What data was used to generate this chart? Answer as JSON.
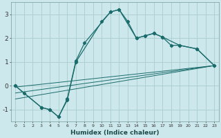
{
  "xlabel": "Humidex (Indice chaleur)",
  "xlim": [
    -0.5,
    23.5
  ],
  "ylim": [
    -1.5,
    3.5
  ],
  "xticks": [
    0,
    1,
    2,
    3,
    4,
    5,
    6,
    7,
    8,
    9,
    10,
    11,
    12,
    13,
    14,
    15,
    16,
    17,
    18,
    19,
    20,
    21,
    22,
    23
  ],
  "yticks": [
    -1,
    0,
    1,
    2,
    3
  ],
  "bg_color": "#cce8ec",
  "grid_color": "#aacccc",
  "line_color": "#1a6b6b",
  "curve1_x": [
    0,
    1,
    3,
    4,
    5,
    6,
    7,
    10,
    11,
    12,
    13,
    14,
    15,
    16,
    17,
    18,
    19,
    21,
    23
  ],
  "curve1_y": [
    0.0,
    -0.3,
    -0.9,
    -1.0,
    -1.3,
    -0.6,
    1.0,
    2.7,
    3.1,
    3.2,
    2.7,
    2.0,
    2.1,
    2.2,
    2.05,
    1.7,
    1.7,
    1.55,
    0.85
  ],
  "curve2_x": [
    0,
    3,
    4,
    5,
    6,
    7,
    8,
    11,
    12,
    14,
    15,
    16,
    17,
    19,
    21,
    23
  ],
  "curve2_y": [
    0.0,
    -0.9,
    -1.0,
    -1.3,
    -0.55,
    1.05,
    1.8,
    3.1,
    3.2,
    2.0,
    2.1,
    2.2,
    2.05,
    1.7,
    1.55,
    0.85
  ],
  "diag_lines": [
    {
      "x": [
        0,
        23
      ],
      "y": [
        -0.05,
        0.85
      ]
    },
    {
      "x": [
        0,
        23
      ],
      "y": [
        -0.3,
        0.85
      ]
    },
    {
      "x": [
        0,
        23
      ],
      "y": [
        -0.55,
        0.85
      ]
    }
  ]
}
